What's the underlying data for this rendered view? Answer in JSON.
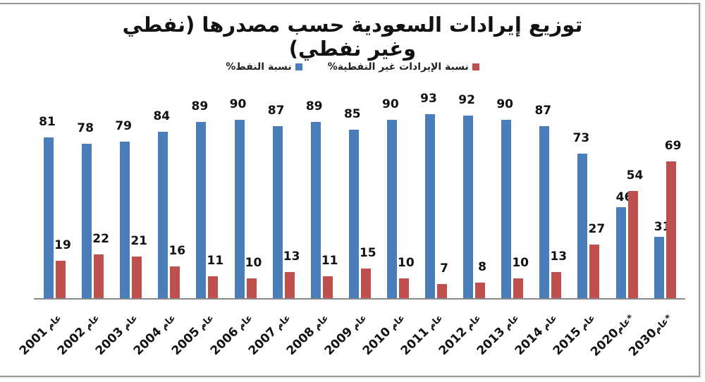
{
  "title": "توزيع إيرادات السعودية حسب مصدرها (نفطي وغير نفطي)",
  "legend": [
    {
      "label": "نسبة النفط%",
      "color": "#4a7ebb"
    },
    {
      "label": "نسبة الإيرادات غير النفطية%",
      "color": "#c0504d"
    }
  ],
  "colors": {
    "oil": "#4a7ebb",
    "non_oil": "#c0504d",
    "axis": "#8a8a8a",
    "frame": "#9a9a9a"
  },
  "chart_data": {
    "type": "bar",
    "title": "توزيع إيرادات السعودية حسب مصدرها (نفطي وغير نفطي)",
    "xlabel": "",
    "ylabel": "",
    "ylim": [
      0,
      100
    ],
    "grid": false,
    "legend_position": "top",
    "categories": [
      "عام 2001",
      "عام 2002",
      "عام 2003",
      "عام 2004",
      "عام 2005",
      "عام 2006",
      "عام 2007",
      "عام 2008",
      "عام 2009",
      "عام 2010",
      "عام 2011",
      "عام 2012",
      "عام 2013",
      "عام 2014",
      "عام 2015",
      "*عام2020",
      "*عام2030"
    ],
    "category_years": [
      "2001",
      "2002",
      "2003",
      "2004",
      "2005",
      "2006",
      "2007",
      "2008",
      "2009",
      "2010",
      "2011",
      "2012",
      "2013",
      "2014",
      "2015",
      "2020",
      "2030"
    ],
    "category_prefix": "عام",
    "category_suffix": [
      "",
      "",
      "",
      "",
      "",
      "",
      "",
      "",
      "",
      "",
      "",
      "",
      "",
      "",
      "",
      "*",
      "*"
    ],
    "series": [
      {
        "name": "نسبة النفط%",
        "color": "#4a7ebb",
        "values": [
          81,
          78,
          79,
          84,
          89,
          90,
          87,
          89,
          85,
          90,
          93,
          92,
          90,
          87,
          73,
          46,
          31
        ]
      },
      {
        "name": "نسبة الإيرادات غير النفطية%",
        "color": "#c0504d",
        "values": [
          19,
          22,
          21,
          16,
          11,
          10,
          13,
          11,
          15,
          10,
          7,
          8,
          10,
          13,
          27,
          54,
          69
        ]
      }
    ]
  }
}
